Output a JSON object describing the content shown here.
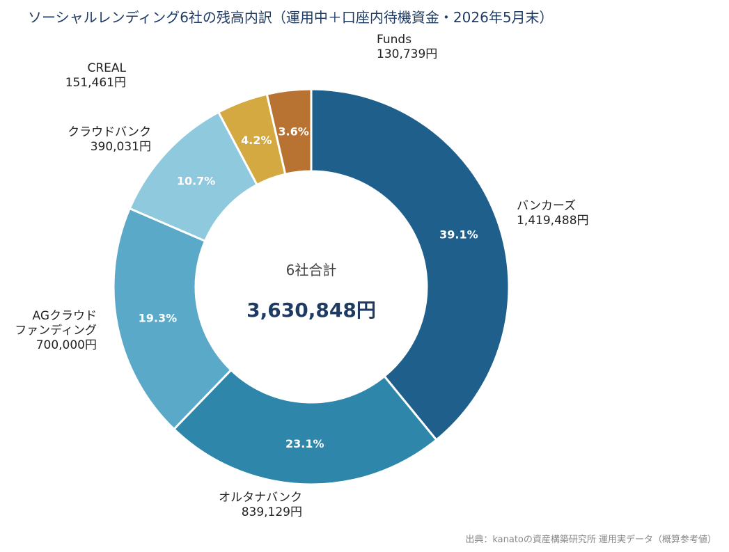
{
  "chart_data": {
    "type": "pie",
    "title": "ソーシャルレンディング6社の残高内訳（運用中＋口座内待機資金・2026年5月末）",
    "center_label": "6社合計",
    "center_value": "3,630,848円",
    "slices": [
      {
        "name": "バンカーズ",
        "value": 1419488,
        "value_label": "1,419,488円",
        "percent": "39.1%",
        "color": "#1f5f8b"
      },
      {
        "name": "オルタナバンク",
        "value": 839129,
        "value_label": "839,129円",
        "percent": "23.1%",
        "color": "#2e86ab"
      },
      {
        "name": "AGクラウド\nファンディング",
        "value": 700000,
        "value_label": "700,000円",
        "percent": "19.3%",
        "color": "#5aa9c9"
      },
      {
        "name": "クラウドバンク",
        "value": 390031,
        "value_label": "390,031円",
        "percent": "10.7%",
        "color": "#8fc9de"
      },
      {
        "name": "CREAL",
        "value": 151461,
        "value_label": "151,461円",
        "percent": "4.2%",
        "color": "#d4a942"
      },
      {
        "name": "Funds",
        "value": 130739,
        "value_label": "130,739円",
        "percent": "3.6%",
        "color": "#b87333"
      }
    ]
  },
  "source_note": "出典：kanatoの資産構築研究所 運用実データ（概算参考値）"
}
